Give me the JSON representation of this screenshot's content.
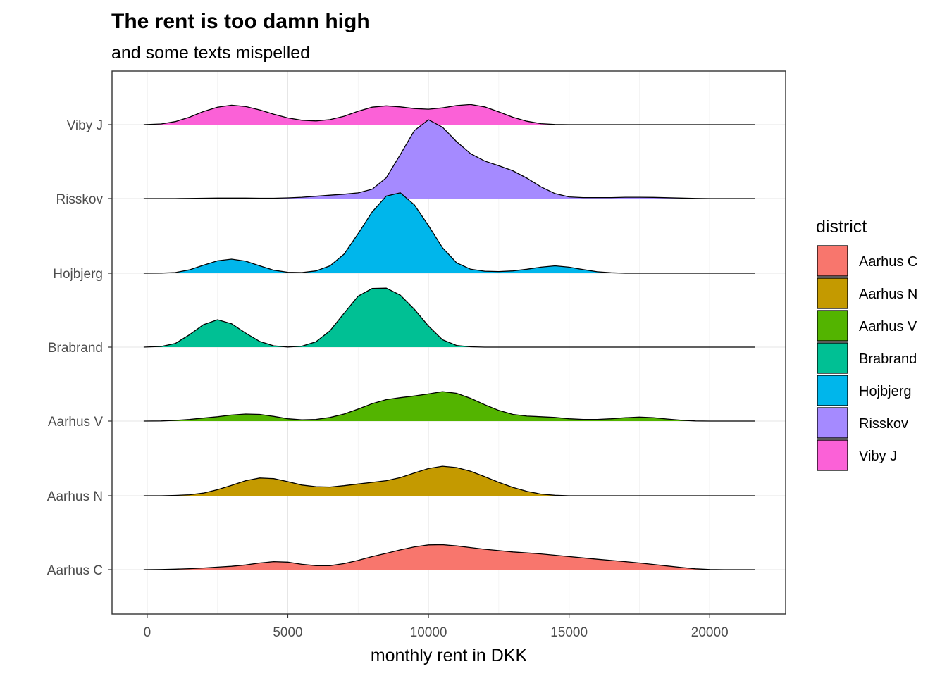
{
  "chart_data": {
    "type": "ridgeline",
    "title": "The rent is too damn high",
    "subtitle": "and some texts mispelled",
    "xlabel": "monthly rent in DKK",
    "ylabel": "",
    "xlim": [
      -1250,
      22700
    ],
    "x_ticks": [
      0,
      5000,
      10000,
      15000,
      20000
    ],
    "x_tick_labels": [
      "0",
      "5000",
      "10000",
      "15000",
      "20000"
    ],
    "grid": true,
    "legend": {
      "title": "district",
      "position": "right"
    },
    "categories": [
      "Aarhus C",
      "Aarhus N",
      "Aarhus V",
      "Brabrand",
      "Hojbjerg",
      "Risskov",
      "Viby J"
    ],
    "x_grid": [
      -125,
      500,
      1000,
      1500,
      2000,
      2500,
      3000,
      3500,
      4000,
      4500,
      5000,
      5500,
      6000,
      6500,
      7000,
      7500,
      8000,
      8500,
      9000,
      9500,
      10000,
      10500,
      11000,
      11500,
      12000,
      12500,
      13000,
      13500,
      14000,
      14500,
      15000,
      15500,
      16000,
      16500,
      17000,
      17500,
      18000,
      18500,
      19000,
      19500,
      20000,
      20500,
      21000,
      21600
    ],
    "series": [
      {
        "name": "Aarhus C",
        "color": "#F8766D",
        "density": [
          0,
          0.01,
          0.03,
          0.06,
          0.1,
          0.15,
          0.2,
          0.28,
          0.4,
          0.48,
          0.45,
          0.32,
          0.24,
          0.24,
          0.36,
          0.56,
          0.78,
          0.98,
          1.18,
          1.36,
          1.48,
          1.49,
          1.42,
          1.32,
          1.22,
          1.14,
          1.06,
          1.0,
          0.94,
          0.86,
          0.78,
          0.7,
          0.62,
          0.55,
          0.48,
          0.4,
          0.31,
          0.22,
          0.13,
          0.05,
          0.01,
          0,
          0,
          0
        ]
      },
      {
        "name": "Aarhus N",
        "color": "#C49A00",
        "density": [
          0,
          0,
          0.02,
          0.06,
          0.16,
          0.36,
          0.62,
          0.9,
          1.06,
          1.02,
          0.84,
          0.64,
          0.54,
          0.52,
          0.6,
          0.7,
          0.8,
          0.9,
          1.08,
          1.36,
          1.62,
          1.76,
          1.68,
          1.46,
          1.14,
          0.8,
          0.5,
          0.26,
          0.1,
          0.03,
          0,
          0,
          0,
          0,
          0,
          0,
          0,
          0,
          0,
          0,
          0,
          0,
          0,
          0
        ]
      },
      {
        "name": "Aarhus V",
        "color": "#53B400",
        "density": [
          0,
          0.01,
          0.04,
          0.1,
          0.18,
          0.26,
          0.36,
          0.42,
          0.4,
          0.28,
          0.14,
          0.08,
          0.1,
          0.22,
          0.42,
          0.72,
          1.04,
          1.28,
          1.4,
          1.5,
          1.62,
          1.76,
          1.66,
          1.36,
          0.98,
          0.64,
          0.4,
          0.3,
          0.26,
          0.22,
          0.14,
          0.1,
          0.1,
          0.14,
          0.2,
          0.24,
          0.2,
          0.12,
          0.05,
          0.01,
          0,
          0,
          0,
          0
        ]
      },
      {
        "name": "Brabrand",
        "color": "#00C094",
        "density": [
          0,
          0.04,
          0.22,
          0.74,
          1.34,
          1.64,
          1.4,
          0.84,
          0.34,
          0.08,
          0.01,
          0.06,
          0.32,
          0.98,
          2.02,
          3.04,
          3.5,
          3.52,
          3.1,
          2.26,
          1.26,
          0.44,
          0.1,
          0.02,
          0,
          0,
          0,
          0,
          0,
          0,
          0,
          0,
          0,
          0,
          0,
          0,
          0,
          0,
          0,
          0,
          0,
          0,
          0,
          0
        ]
      },
      {
        "name": "Hojbjerg",
        "color": "#00B6EB",
        "density": [
          0,
          0.01,
          0.04,
          0.2,
          0.48,
          0.74,
          0.84,
          0.72,
          0.44,
          0.18,
          0.06,
          0.04,
          0.14,
          0.44,
          1.14,
          2.36,
          3.66,
          4.6,
          4.8,
          4.08,
          2.84,
          1.52,
          0.62,
          0.24,
          0.12,
          0.1,
          0.14,
          0.24,
          0.36,
          0.44,
          0.36,
          0.22,
          0.09,
          0.03,
          0,
          0,
          0,
          0,
          0,
          0,
          0,
          0,
          0,
          0
        ]
      },
      {
        "name": "Risskov",
        "color": "#A58AFF",
        "density": [
          0,
          0,
          0,
          0.01,
          0.02,
          0.03,
          0.03,
          0.03,
          0.02,
          0.02,
          0.04,
          0.08,
          0.14,
          0.2,
          0.26,
          0.34,
          0.56,
          1.24,
          2.62,
          4.06,
          4.7,
          4.26,
          3.4,
          2.68,
          2.24,
          1.96,
          1.66,
          1.22,
          0.7,
          0.3,
          0.1,
          0.06,
          0.06,
          0.06,
          0.08,
          0.08,
          0.07,
          0.05,
          0.03,
          0.01,
          0,
          0,
          0,
          0
        ]
      },
      {
        "name": "Viby J",
        "color": "#FB61D7",
        "density": [
          0,
          0.04,
          0.18,
          0.44,
          0.78,
          1.04,
          1.16,
          1.08,
          0.88,
          0.62,
          0.4,
          0.26,
          0.22,
          0.3,
          0.5,
          0.8,
          1.04,
          1.12,
          1.06,
          0.96,
          0.92,
          1.0,
          1.14,
          1.2,
          1.06,
          0.76,
          0.44,
          0.2,
          0.06,
          0.01,
          0,
          0,
          0,
          0,
          0,
          0,
          0,
          0,
          0,
          0,
          0,
          0,
          0,
          0
        ]
      }
    ]
  }
}
